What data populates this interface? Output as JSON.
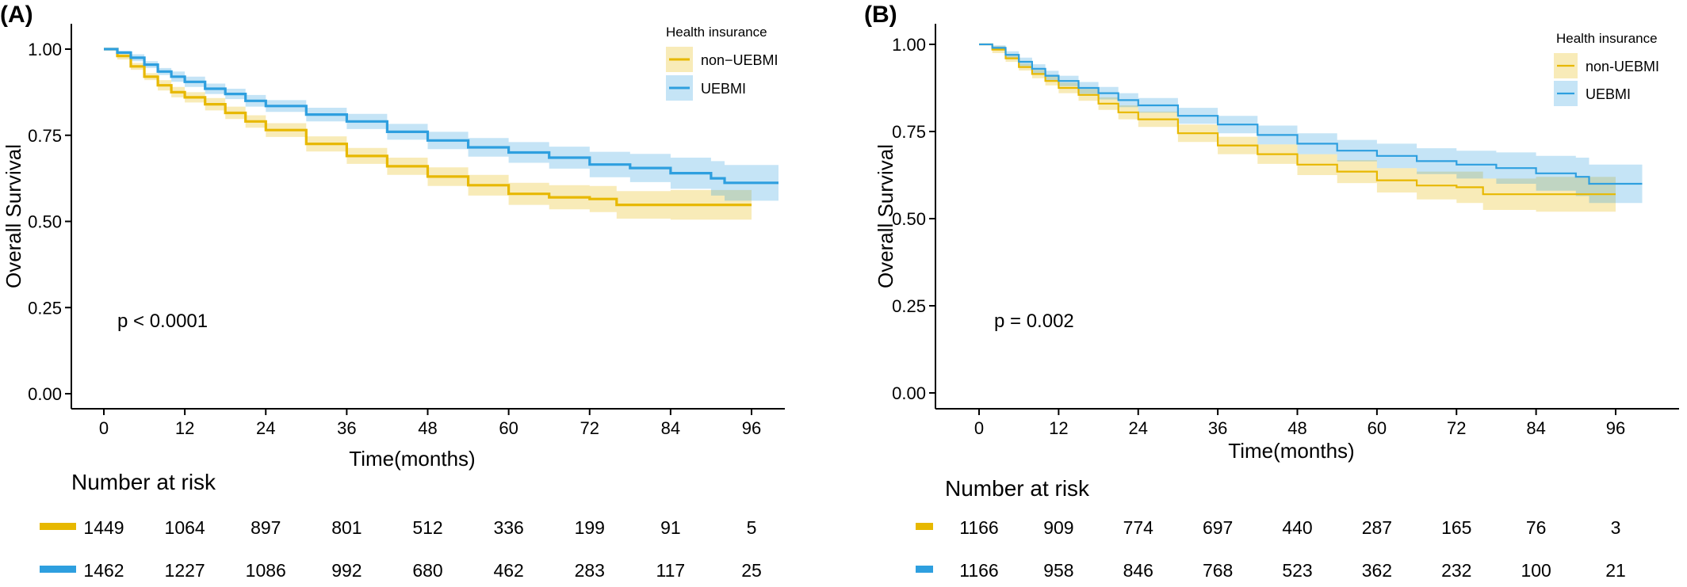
{
  "chart_data": [
    {
      "type": "line",
      "panel_label": "(A)",
      "xlabel": "Time(months)",
      "ylabel": "Overall Survival",
      "xlim": [
        -4,
        101
      ],
      "ylim": [
        -0.04,
        1.04
      ],
      "x_ticks": [
        0,
        12,
        24,
        36,
        48,
        60,
        72,
        84,
        96
      ],
      "y_ticks": [
        0.0,
        0.25,
        0.5,
        0.75,
        1.0
      ],
      "y_tick_labels": [
        "0.00",
        "0.25",
        "0.50",
        "0.75",
        "1.00"
      ],
      "grid": false,
      "legend": {
        "title": "Health insurance",
        "position": "top-right"
      },
      "annotation": "p < 0.0001",
      "confidence_bands": true,
      "series": [
        {
          "name": "non−UEBMI",
          "color": "#E7B800",
          "x": [
            0,
            2,
            4,
            6,
            8,
            10,
            12,
            15,
            18,
            21,
            24,
            30,
            36,
            42,
            48,
            54,
            60,
            66,
            72,
            76,
            84,
            90,
            96
          ],
          "y": [
            1.0,
            0.98,
            0.95,
            0.92,
            0.895,
            0.875,
            0.86,
            0.84,
            0.815,
            0.79,
            0.765,
            0.725,
            0.69,
            0.66,
            0.63,
            0.605,
            0.58,
            0.57,
            0.565,
            0.548,
            0.548,
            0.548,
            0.548
          ],
          "lower": [
            1.0,
            0.97,
            0.94,
            0.91,
            0.88,
            0.86,
            0.845,
            0.822,
            0.797,
            0.772,
            0.745,
            0.703,
            0.667,
            0.635,
            0.603,
            0.575,
            0.548,
            0.535,
            0.527,
            0.508,
            0.505,
            0.505,
            0.505
          ],
          "upper": [
            1.0,
            0.99,
            0.96,
            0.93,
            0.91,
            0.89,
            0.875,
            0.858,
            0.833,
            0.808,
            0.785,
            0.747,
            0.713,
            0.685,
            0.657,
            0.635,
            0.612,
            0.605,
            0.603,
            0.588,
            0.591,
            0.591,
            0.591
          ],
          "risk": [
            1449,
            1064,
            897,
            801,
            512,
            336,
            199,
            91,
            5
          ]
        },
        {
          "name": "UEBMI",
          "color": "#2E9FDF",
          "x": [
            0,
            2,
            4,
            6,
            8,
            10,
            12,
            15,
            18,
            21,
            24,
            30,
            36,
            42,
            48,
            54,
            60,
            66,
            72,
            78,
            84,
            90,
            92,
            100
          ],
          "y": [
            1.0,
            0.99,
            0.975,
            0.955,
            0.935,
            0.92,
            0.905,
            0.885,
            0.87,
            0.85,
            0.835,
            0.81,
            0.79,
            0.76,
            0.735,
            0.715,
            0.7,
            0.685,
            0.665,
            0.655,
            0.64,
            0.625,
            0.612,
            0.612
          ],
          "lower": [
            1.0,
            0.985,
            0.965,
            0.945,
            0.925,
            0.905,
            0.89,
            0.87,
            0.855,
            0.833,
            0.818,
            0.79,
            0.768,
            0.737,
            0.71,
            0.688,
            0.67,
            0.653,
            0.628,
            0.614,
            0.595,
            0.575,
            0.56,
            0.56
          ],
          "upper": [
            1.0,
            0.995,
            0.985,
            0.965,
            0.945,
            0.935,
            0.92,
            0.9,
            0.885,
            0.867,
            0.852,
            0.83,
            0.812,
            0.783,
            0.76,
            0.742,
            0.73,
            0.717,
            0.702,
            0.696,
            0.685,
            0.675,
            0.664,
            0.664
          ],
          "risk": [
            1462,
            1227,
            1086,
            992,
            680,
            462,
            283,
            117,
            25
          ]
        }
      ],
      "risk_table": {
        "title": "Number at risk",
        "times": [
          0,
          12,
          24,
          36,
          48,
          60,
          72,
          84,
          96
        ]
      }
    },
    {
      "type": "line",
      "panel_label": "(B)",
      "xlabel": "Time(months)",
      "ylabel": "Overall Survival",
      "xlim": [
        -4,
        101
      ],
      "ylim": [
        -0.04,
        1.04
      ],
      "x_ticks": [
        0,
        12,
        24,
        36,
        48,
        60,
        72,
        84,
        96
      ],
      "y_ticks": [
        0.0,
        0.25,
        0.5,
        0.75,
        1.0
      ],
      "y_tick_labels": [
        "0.00",
        "0.25",
        "0.50",
        "0.75",
        "1.00"
      ],
      "grid": false,
      "legend": {
        "title": "Health insurance",
        "position": "top-right"
      },
      "annotation": "p = 0.002",
      "confidence_bands": true,
      "series": [
        {
          "name": "non-UEBMI",
          "color": "#E7B800",
          "x": [
            0,
            2,
            4,
            6,
            8,
            10,
            12,
            15,
            18,
            21,
            24,
            30,
            36,
            42,
            48,
            54,
            60,
            66,
            72,
            76,
            84,
            90,
            96
          ],
          "y": [
            1.0,
            0.985,
            0.96,
            0.935,
            0.915,
            0.895,
            0.875,
            0.855,
            0.83,
            0.805,
            0.785,
            0.745,
            0.71,
            0.685,
            0.655,
            0.635,
            0.61,
            0.595,
            0.59,
            0.57,
            0.57,
            0.57,
            0.57
          ],
          "lower": [
            1.0,
            0.975,
            0.95,
            0.925,
            0.903,
            0.882,
            0.86,
            0.838,
            0.812,
            0.785,
            0.763,
            0.72,
            0.685,
            0.657,
            0.625,
            0.602,
            0.575,
            0.555,
            0.545,
            0.525,
            0.52,
            0.52,
            0.52
          ],
          "upper": [
            1.0,
            0.995,
            0.97,
            0.945,
            0.927,
            0.908,
            0.89,
            0.872,
            0.848,
            0.825,
            0.807,
            0.77,
            0.735,
            0.713,
            0.685,
            0.668,
            0.645,
            0.635,
            0.635,
            0.615,
            0.62,
            0.62,
            0.62
          ],
          "risk": [
            1166,
            909,
            774,
            697,
            440,
            287,
            165,
            76,
            3
          ]
        },
        {
          "name": "UEBMI",
          "color": "#2E9FDF",
          "x": [
            0,
            2,
            4,
            6,
            8,
            10,
            12,
            15,
            18,
            21,
            24,
            30,
            36,
            42,
            48,
            54,
            60,
            66,
            72,
            78,
            84,
            90,
            92,
            100
          ],
          "y": [
            1.0,
            0.99,
            0.97,
            0.95,
            0.93,
            0.91,
            0.895,
            0.875,
            0.86,
            0.84,
            0.825,
            0.795,
            0.77,
            0.74,
            0.715,
            0.695,
            0.68,
            0.665,
            0.655,
            0.645,
            0.63,
            0.62,
            0.6,
            0.6
          ],
          "lower": [
            1.0,
            0.983,
            0.96,
            0.938,
            0.917,
            0.896,
            0.88,
            0.858,
            0.842,
            0.82,
            0.804,
            0.772,
            0.745,
            0.713,
            0.685,
            0.664,
            0.645,
            0.628,
            0.615,
            0.6,
            0.58,
            0.565,
            0.545,
            0.545
          ],
          "upper": [
            1.0,
            0.997,
            0.98,
            0.962,
            0.943,
            0.924,
            0.91,
            0.892,
            0.878,
            0.86,
            0.846,
            0.818,
            0.795,
            0.767,
            0.745,
            0.726,
            0.715,
            0.702,
            0.695,
            0.69,
            0.68,
            0.675,
            0.655,
            0.655
          ],
          "risk": [
            1166,
            958,
            846,
            768,
            523,
            362,
            232,
            100,
            21
          ]
        }
      ],
      "risk_table": {
        "title": "Number at risk",
        "times": [
          0,
          12,
          24,
          36,
          48,
          60,
          72,
          84,
          96
        ]
      }
    }
  ]
}
